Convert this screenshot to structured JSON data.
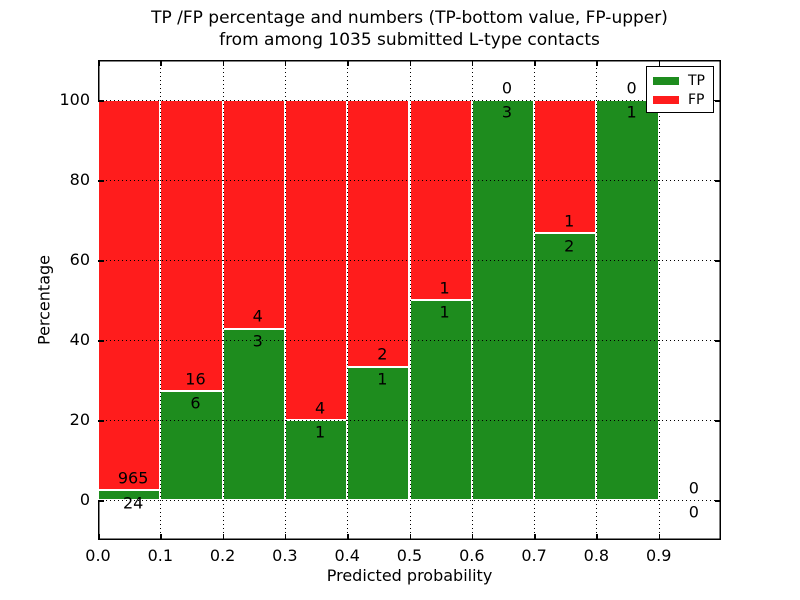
{
  "title": {
    "line1": "TP /FP percentage and numbers (TP-bottom value, FP-upper)",
    "line2": "from among 1035 submitted L-type contacts"
  },
  "axes": {
    "xlabel": "Predicted probability",
    "ylabel": "Percentage",
    "x_tick_values": [
      0.0,
      0.1,
      0.2,
      0.3,
      0.4,
      0.5,
      0.6,
      0.7,
      0.8,
      0.9
    ],
    "x_tick_labels": [
      "0.0",
      "0.1",
      "0.2",
      "0.3",
      "0.4",
      "0.5",
      "0.6",
      "0.7",
      "0.8",
      "0.9"
    ],
    "y_tick_values": [
      0,
      20,
      40,
      60,
      80,
      100
    ],
    "y_tick_labels": [
      "0",
      "20",
      "40",
      "60",
      "80",
      "100"
    ]
  },
  "legend": {
    "position": "upper right",
    "items": [
      {
        "label": "TP",
        "color": "#1e8c1e"
      },
      {
        "label": "FP",
        "color": "#ff1c1c"
      }
    ]
  },
  "colors": {
    "tp_green": "#1e8c1e",
    "fp_red": "#ff1c1c",
    "bar_edge": "#ffffff",
    "grid": "#000000",
    "background": "#ffffff"
  },
  "chart_data": {
    "type": "bar",
    "stacked": true,
    "normalized": "percent",
    "title": "TP /FP percentage and numbers (TP-bottom value, FP-upper) from among 1035 submitted L-type contacts",
    "xlabel": "Predicted probability",
    "ylabel": "Percentage",
    "xlim": [
      0.0,
      1.0
    ],
    "ylim": [
      -10,
      110
    ],
    "grid": true,
    "grid_style": "dotted",
    "legend_position": "upper right",
    "bin_edges": [
      0.0,
      0.1,
      0.2,
      0.3,
      0.4,
      0.5,
      0.6,
      0.7,
      0.8,
      0.9,
      1.0
    ],
    "series": [
      {
        "name": "TP",
        "color": "#1e8c1e",
        "counts": [
          24,
          6,
          3,
          1,
          1,
          1,
          3,
          2,
          1,
          0
        ]
      },
      {
        "name": "FP",
        "color": "#ff1c1c",
        "counts": [
          965,
          16,
          4,
          4,
          2,
          1,
          0,
          1,
          0,
          0
        ]
      }
    ],
    "tp_percent_per_bin": [
      2.43,
      27.27,
      42.86,
      20.0,
      33.33,
      50.0,
      100.0,
      66.67,
      100.0,
      null
    ]
  }
}
